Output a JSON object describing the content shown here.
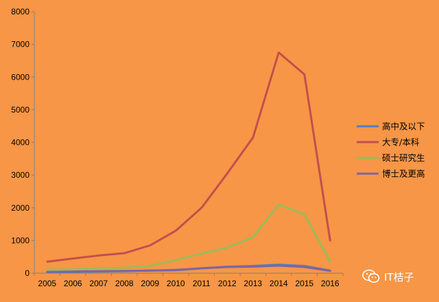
{
  "chart_data": {
    "type": "line",
    "title": "",
    "xlabel": "",
    "ylabel": "",
    "x": [
      "2005",
      "2006",
      "2007",
      "2008",
      "2009",
      "2010",
      "2011",
      "2012",
      "2013",
      "2014",
      "2015",
      "2016"
    ],
    "ylim": [
      0,
      8000
    ],
    "yticks": [
      0,
      1000,
      2000,
      3000,
      4000,
      5000,
      6000,
      7000,
      8000
    ],
    "grid": false,
    "legend_position": "right",
    "series": [
      {
        "name": "高中及以下",
        "color": "#4F81BD",
        "values": [
          30,
          40,
          50,
          60,
          80,
          90,
          150,
          200,
          220,
          260,
          220,
          80
        ]
      },
      {
        "name": "大专/本科",
        "color": "#C0504D",
        "values": [
          350,
          450,
          540,
          610,
          850,
          1300,
          2000,
          3050,
          4150,
          6750,
          6080,
          1000
        ]
      },
      {
        "name": "硕士研究生",
        "color": "#9BBB59",
        "values": [
          100,
          120,
          140,
          170,
          220,
          400,
          600,
          780,
          1100,
          2100,
          1800,
          350
        ]
      },
      {
        "name": "博士及更高",
        "color": "#8064A2",
        "values": [
          40,
          50,
          60,
          70,
          80,
          100,
          150,
          190,
          200,
          230,
          190,
          70
        ]
      }
    ]
  },
  "watermark": {
    "text": "IT桔子",
    "icon": "wechat-icon"
  }
}
